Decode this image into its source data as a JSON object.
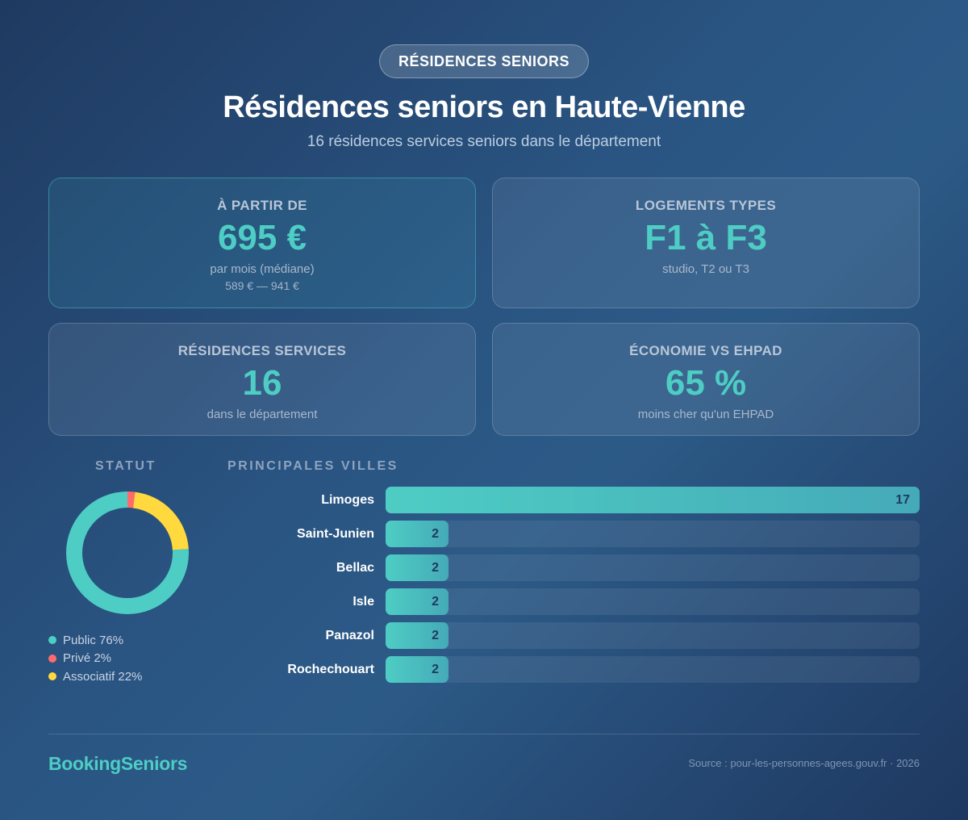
{
  "header": {
    "badge": "RÉSIDENCES SENIORS",
    "title": "Résidences seniors en Haute-Vienne",
    "subtitle": "16 résidences services seniors dans le département"
  },
  "cards": [
    {
      "label": "À PARTIR DE",
      "value": "695 €",
      "sub": "par mois (médiane)",
      "sub2": "589 € — 941 €"
    },
    {
      "label": "LOGEMENTS TYPES",
      "value": "F1 à F3",
      "sub": "studio, T2 ou T3"
    },
    {
      "label": "RÉSIDENCES SERVICES",
      "value": "16",
      "sub": "dans le département"
    },
    {
      "label": "ÉCONOMIE VS EHPAD",
      "value": "65 %",
      "sub": "moins cher qu'un EHPAD"
    }
  ],
  "statut": {
    "title": "STATUT",
    "legend": [
      {
        "label": "Public 76%",
        "color": "#4ecdc4"
      },
      {
        "label": "Privé 2%",
        "color": "#ff6b6b"
      },
      {
        "label": "Associatif 22%",
        "color": "#ffd93d"
      }
    ]
  },
  "villes": {
    "title": "PRINCIPALES VILLES"
  },
  "chart_data": [
    {
      "type": "pie",
      "title": "STATUT",
      "categories": [
        "Public",
        "Privé",
        "Associatif"
      ],
      "values": [
        76,
        2,
        22
      ],
      "colors": [
        "#4ecdc4",
        "#ff6b6b",
        "#ffd93d"
      ],
      "donut": true,
      "legend_position": "bottom"
    },
    {
      "type": "bar",
      "orientation": "horizontal",
      "title": "PRINCIPALES VILLES",
      "categories": [
        "Limoges",
        "Saint-Junien",
        "Bellac",
        "Isle",
        "Panazol",
        "Rochechouart"
      ],
      "values": [
        17,
        2,
        2,
        2,
        2,
        2
      ],
      "max": 17,
      "data_labels": true,
      "grid": false
    }
  ],
  "footer": {
    "brand": "BookingSeniors",
    "source": "Source : pour-les-personnes-agees.gouv.fr · 2026"
  },
  "colors": {
    "accent": "#4ecdc4",
    "prive": "#ff6b6b",
    "associatif": "#ffd93d"
  }
}
